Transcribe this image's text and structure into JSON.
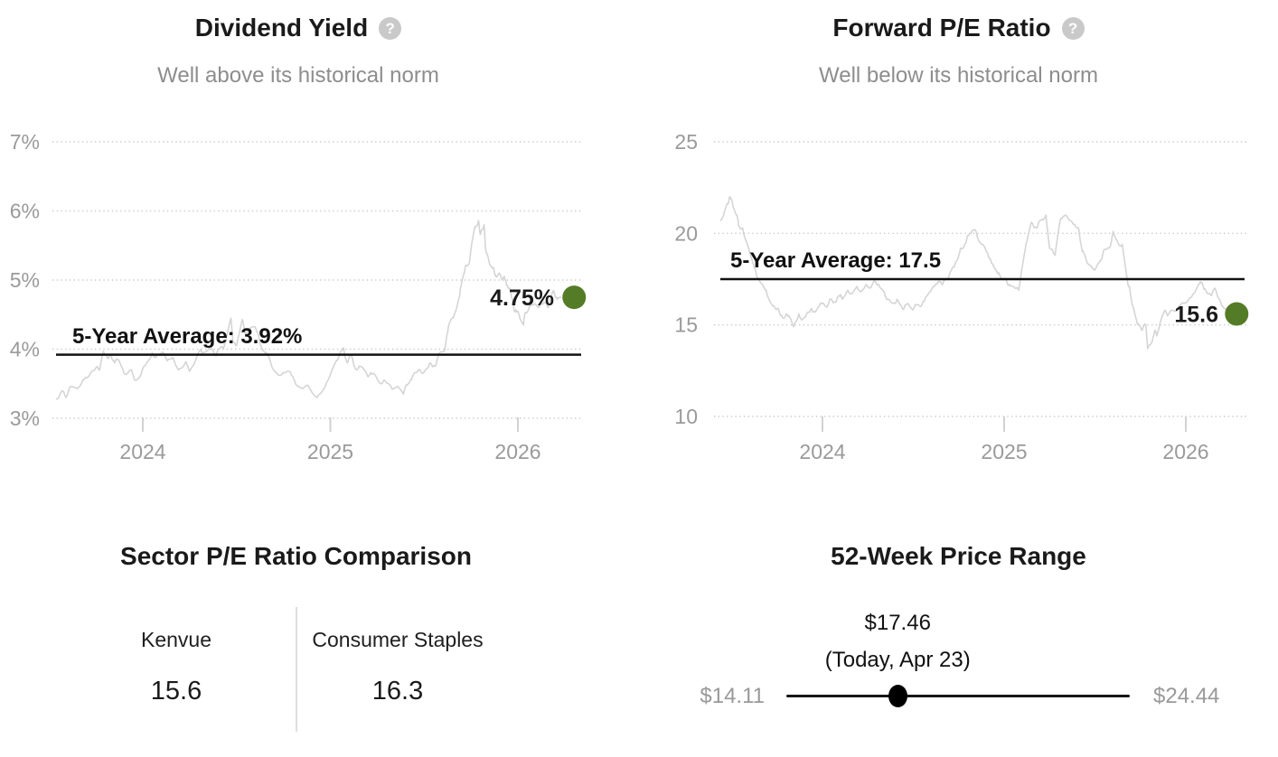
{
  "colors": {
    "title": "#1a1a1a",
    "subtitle": "#8d8d8d",
    "axis_label": "#9a9a9a",
    "gridline": "#c8c8c8",
    "tick_mark": "#d2d2d2",
    "series_line": "#d5d5d5",
    "average_line": "#111111",
    "current_dot": "#547c26",
    "range_track": "#161616",
    "range_dot": "#000000",
    "divider": "#dedede",
    "help_icon_bg": "#c9c9c9"
  },
  "icons": {
    "question_glyph": "?"
  },
  "dividend_yield_card": {
    "title": "Dividend Yield",
    "subtitle": "Well above its historical norm"
  },
  "forward_pe_card": {
    "title": "Forward P/E Ratio",
    "subtitle": "Well below its historical norm"
  },
  "chart_data": [
    {
      "id": "dividend_yield",
      "type": "line",
      "title": "Dividend Yield",
      "subtitle": "Well above its historical norm",
      "xlabel": "",
      "ylabel": "",
      "ylim": [
        3,
        7
      ],
      "xlim": [
        2023.5,
        2026.35
      ],
      "grid": "horizontal-dotted",
      "legend": "none",
      "y_ticks": [
        {
          "value": 7,
          "label": "7%"
        },
        {
          "value": 6,
          "label": "6%"
        },
        {
          "value": 5,
          "label": "5%"
        },
        {
          "value": 4,
          "label": "4%"
        },
        {
          "value": 3,
          "label": "3%"
        }
      ],
      "x_ticks": [
        {
          "value": 2024,
          "label": "2024"
        },
        {
          "value": 2025,
          "label": "2025"
        },
        {
          "value": 2026,
          "label": "2026"
        }
      ],
      "average_line": {
        "value": 3.92,
        "label": "5-Year Average: 3.92%"
      },
      "current_point": {
        "x": 2026.3,
        "value": 4.75,
        "label": "4.75%"
      },
      "series": [
        {
          "name": "Dividend Yield",
          "points": [
            [
              2023.54,
              3.28
            ],
            [
              2023.57,
              3.4
            ],
            [
              2023.59,
              3.3
            ],
            [
              2023.61,
              3.45
            ],
            [
              2023.65,
              3.43
            ],
            [
              2023.68,
              3.55
            ],
            [
              2023.71,
              3.6
            ],
            [
              2023.75,
              3.73
            ],
            [
              2023.77,
              3.7
            ],
            [
              2023.79,
              3.97
            ],
            [
              2023.81,
              3.88
            ],
            [
              2023.83,
              3.92
            ],
            [
              2023.85,
              3.8
            ],
            [
              2023.87,
              3.85
            ],
            [
              2023.9,
              3.65
            ],
            [
              2023.94,
              3.7
            ],
            [
              2023.96,
              3.55
            ],
            [
              2023.99,
              3.63
            ],
            [
              2024.02,
              3.8
            ],
            [
              2024.05,
              3.95
            ],
            [
              2024.07,
              3.88
            ],
            [
              2024.1,
              3.95
            ],
            [
              2024.13,
              3.83
            ],
            [
              2024.16,
              3.88
            ],
            [
              2024.19,
              3.7
            ],
            [
              2024.23,
              3.82
            ],
            [
              2024.25,
              3.68
            ],
            [
              2024.28,
              3.83
            ],
            [
              2024.31,
              4.0
            ],
            [
              2024.32,
              3.95
            ],
            [
              2024.36,
              4.05
            ],
            [
              2024.39,
              3.9
            ],
            [
              2024.4,
              4.0
            ],
            [
              2024.43,
              4.0
            ],
            [
              2024.47,
              4.45
            ],
            [
              2024.48,
              4.1
            ],
            [
              2024.5,
              4.05
            ],
            [
              2024.53,
              4.43
            ],
            [
              2024.55,
              4.2
            ],
            [
              2024.56,
              4.3
            ],
            [
              2024.6,
              4.32
            ],
            [
              2024.63,
              4.05
            ],
            [
              2024.66,
              3.95
            ],
            [
              2024.69,
              3.73
            ],
            [
              2024.73,
              3.62
            ],
            [
              2024.77,
              3.68
            ],
            [
              2024.8,
              3.6
            ],
            [
              2024.83,
              3.46
            ],
            [
              2024.88,
              3.48
            ],
            [
              2024.93,
              3.3
            ],
            [
              2024.96,
              3.4
            ],
            [
              2025.0,
              3.63
            ],
            [
              2025.04,
              3.85
            ],
            [
              2025.07,
              4.02
            ],
            [
              2025.09,
              3.8
            ],
            [
              2025.11,
              3.92
            ],
            [
              2025.14,
              3.7
            ],
            [
              2025.16,
              3.75
            ],
            [
              2025.2,
              3.6
            ],
            [
              2025.23,
              3.65
            ],
            [
              2025.27,
              3.5
            ],
            [
              2025.29,
              3.55
            ],
            [
              2025.33,
              3.42
            ],
            [
              2025.35,
              3.45
            ],
            [
              2025.39,
              3.35
            ],
            [
              2025.41,
              3.48
            ],
            [
              2025.43,
              3.55
            ],
            [
              2025.47,
              3.7
            ],
            [
              2025.5,
              3.67
            ],
            [
              2025.53,
              3.8
            ],
            [
              2025.56,
              3.75
            ],
            [
              2025.58,
              3.94
            ],
            [
              2025.61,
              3.98
            ],
            [
              2025.63,
              4.33
            ],
            [
              2025.65,
              4.45
            ],
            [
              2025.67,
              4.56
            ],
            [
              2025.69,
              4.78
            ],
            [
              2025.7,
              4.96
            ],
            [
              2025.72,
              5.2
            ],
            [
              2025.74,
              5.24
            ],
            [
              2025.75,
              5.44
            ],
            [
              2025.77,
              5.77
            ],
            [
              2025.79,
              5.86
            ],
            [
              2025.8,
              5.66
            ],
            [
              2025.82,
              5.8
            ],
            [
              2025.83,
              5.4
            ],
            [
              2025.85,
              5.22
            ],
            [
              2025.87,
              5.18
            ],
            [
              2025.88,
              5.07
            ],
            [
              2025.9,
              5.1
            ],
            [
              2025.92,
              5.0
            ],
            [
              2025.93,
              5.02
            ],
            [
              2025.94,
              4.92
            ],
            [
              2025.96,
              4.85
            ],
            [
              2025.98,
              4.55
            ],
            [
              2025.99,
              4.57
            ],
            [
              2026.01,
              4.45
            ],
            [
              2026.03,
              4.35
            ],
            [
              2026.04,
              4.53
            ],
            [
              2026.07,
              4.64
            ],
            [
              2026.11,
              4.6
            ],
            [
              2026.14,
              4.68
            ],
            [
              2026.16,
              4.6
            ],
            [
              2026.19,
              4.85
            ],
            [
              2026.21,
              4.72
            ],
            [
              2026.23,
              4.75
            ]
          ]
        }
      ]
    },
    {
      "id": "forward_pe",
      "type": "line",
      "title": "Forward P/E Ratio",
      "subtitle": "Well below its historical norm",
      "xlabel": "",
      "ylabel": "",
      "ylim": [
        10,
        25
      ],
      "xlim": [
        2023.4,
        2026.35
      ],
      "grid": "horizontal-dotted",
      "legend": "none",
      "y_ticks": [
        {
          "value": 25,
          "label": "25"
        },
        {
          "value": 20,
          "label": "20"
        },
        {
          "value": 15,
          "label": "15"
        },
        {
          "value": 10,
          "label": "10"
        }
      ],
      "x_ticks": [
        {
          "value": 2024,
          "label": "2024"
        },
        {
          "value": 2025,
          "label": "2025"
        },
        {
          "value": 2026,
          "label": "2026"
        }
      ],
      "average_line": {
        "value": 17.5,
        "label": "5-Year Average: 17.5"
      },
      "current_point": {
        "x": 2026.28,
        "value": 15.6,
        "label": "15.6"
      },
      "series": [
        {
          "name": "Forward P/E Ratio",
          "points": [
            [
              2023.44,
              20.7
            ],
            [
              2023.46,
              21.2
            ],
            [
              2023.48,
              21.6
            ],
            [
              2023.49,
              22.0
            ],
            [
              2023.51,
              21.4
            ],
            [
              2023.53,
              21.0
            ],
            [
              2023.54,
              20.4
            ],
            [
              2023.56,
              20.3
            ],
            [
              2023.59,
              19.3
            ],
            [
              2023.62,
              18.3
            ],
            [
              2023.64,
              17.6
            ],
            [
              2023.67,
              17.2
            ],
            [
              2023.69,
              16.9
            ],
            [
              2023.71,
              16.3
            ],
            [
              2023.74,
              15.9
            ],
            [
              2023.76,
              15.8
            ],
            [
              2023.78,
              15.4
            ],
            [
              2023.8,
              15.6
            ],
            [
              2023.82,
              15.4
            ],
            [
              2023.84,
              14.9
            ],
            [
              2023.87,
              15.6
            ],
            [
              2023.89,
              15.3
            ],
            [
              2023.92,
              15.7
            ],
            [
              2023.94,
              15.9
            ],
            [
              2023.96,
              15.7
            ],
            [
              2023.99,
              16.2
            ],
            [
              2024.02,
              16.0
            ],
            [
              2024.04,
              16.4
            ],
            [
              2024.06,
              16.2
            ],
            [
              2024.09,
              16.6
            ],
            [
              2024.11,
              16.4
            ],
            [
              2024.14,
              16.9
            ],
            [
              2024.16,
              16.7
            ],
            [
              2024.19,
              17.1
            ],
            [
              2024.21,
              16.8
            ],
            [
              2024.24,
              17.2
            ],
            [
              2024.26,
              17.0
            ],
            [
              2024.29,
              17.4
            ],
            [
              2024.31,
              17.2
            ],
            [
              2024.34,
              16.8
            ],
            [
              2024.36,
              16.4
            ],
            [
              2024.39,
              16.2
            ],
            [
              2024.41,
              16.4
            ],
            [
              2024.44,
              15.9
            ],
            [
              2024.46,
              16.1
            ],
            [
              2024.49,
              15.9
            ],
            [
              2024.51,
              16.1
            ],
            [
              2024.54,
              16.0
            ],
            [
              2024.56,
              16.3
            ],
            [
              2024.59,
              16.8
            ],
            [
              2024.61,
              17.1
            ],
            [
              2024.64,
              17.4
            ],
            [
              2024.66,
              17.2
            ],
            [
              2024.69,
              17.5
            ],
            [
              2024.71,
              18.0
            ],
            [
              2024.74,
              18.5
            ],
            [
              2024.76,
              19.2
            ],
            [
              2024.79,
              19.5
            ],
            [
              2024.81,
              20.0
            ],
            [
              2024.84,
              20.2
            ],
            [
              2024.86,
              19.6
            ],
            [
              2024.89,
              19.3
            ],
            [
              2024.91,
              18.9
            ],
            [
              2024.93,
              18.4
            ],
            [
              2024.96,
              17.9
            ],
            [
              2024.98,
              17.6
            ],
            [
              2025.01,
              17.5
            ],
            [
              2025.03,
              17.2
            ],
            [
              2025.06,
              17.0
            ],
            [
              2025.08,
              16.9
            ],
            [
              2025.11,
              18.8
            ],
            [
              2025.13,
              19.8
            ],
            [
              2025.15,
              20.6
            ],
            [
              2025.18,
              20.3
            ],
            [
              2025.2,
              20.7
            ],
            [
              2025.23,
              21.0
            ],
            [
              2025.25,
              19.2
            ],
            [
              2025.28,
              18.8
            ],
            [
              2025.31,
              20.8
            ],
            [
              2025.34,
              21.0
            ],
            [
              2025.38,
              20.5
            ],
            [
              2025.41,
              20.3
            ],
            [
              2025.43,
              19.0
            ],
            [
              2025.45,
              18.6
            ],
            [
              2025.48,
              18.2
            ],
            [
              2025.5,
              18.0
            ],
            [
              2025.53,
              18.5
            ],
            [
              2025.55,
              19.1
            ],
            [
              2025.58,
              19.2
            ],
            [
              2025.6,
              20.1
            ],
            [
              2025.63,
              19.4
            ],
            [
              2025.65,
              19.4
            ],
            [
              2025.68,
              17.3
            ],
            [
              2025.69,
              17.1
            ],
            [
              2025.71,
              16.0
            ],
            [
              2025.73,
              15.2
            ],
            [
              2025.74,
              15.0
            ],
            [
              2025.76,
              14.7
            ],
            [
              2025.78,
              15.0
            ],
            [
              2025.79,
              13.7
            ],
            [
              2025.81,
              14.0
            ],
            [
              2025.83,
              14.7
            ],
            [
              2025.84,
              14.4
            ],
            [
              2025.88,
              15.7
            ],
            [
              2025.9,
              15.5
            ],
            [
              2025.93,
              15.8
            ],
            [
              2025.96,
              16.0
            ],
            [
              2025.99,
              16.2
            ],
            [
              2026.03,
              16.5
            ],
            [
              2026.07,
              17.2
            ],
            [
              2026.09,
              17.3
            ],
            [
              2026.11,
              16.9
            ],
            [
              2026.14,
              16.6
            ],
            [
              2026.16,
              17.0
            ],
            [
              2026.19,
              16.3
            ],
            [
              2026.21,
              15.9
            ],
            [
              2026.24,
              15.6
            ]
          ]
        }
      ]
    }
  ],
  "sector_comparison": {
    "title": "Sector P/E Ratio Comparison",
    "columns": [
      {
        "label": "Kenvue",
        "value": "15.6"
      },
      {
        "label": "Consumer Staples",
        "value": "16.3"
      }
    ]
  },
  "price_range": {
    "title": "52-Week Price Range",
    "low": 14.11,
    "high": 24.44,
    "current": 17.46,
    "low_label": "$14.11",
    "high_label": "$24.44",
    "current_label": "$17.46",
    "current_caption": "(Today, Apr 23)"
  }
}
